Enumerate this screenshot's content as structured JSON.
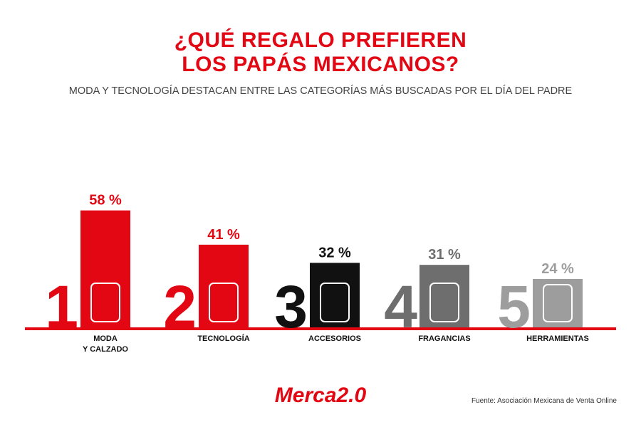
{
  "chart_data": {
    "type": "bar",
    "title": "¿QUÉ REGALO PREFIEREN\nLOS PAPÁS MEXICANOS?",
    "subtitle": "MODA Y TECNOLOGÍA DESTACAN ENTRE LAS CATEGORÍAS MÁS BUSCADAS POR EL DÍA DEL PADRE",
    "categories": [
      "MODA\nY CALZADO",
      "TECNOLOGÍA",
      "ACCESORIOS",
      "FRAGANCIAS",
      "HERRAMIENTAS"
    ],
    "ranks": [
      1,
      2,
      3,
      4,
      5
    ],
    "values": [
      58,
      41,
      32,
      31,
      24
    ],
    "value_labels": [
      "58 %",
      "41 %",
      "32 %",
      "31 %",
      "24 %"
    ],
    "colors": [
      "#e30613",
      "#e30613",
      "#111111",
      "#6e6e6e",
      "#9d9d9d"
    ],
    "ylim": [
      0,
      60
    ],
    "source": "Fuente: Asociación Mexicana de Venta Online",
    "logo": "Merca2.0"
  }
}
